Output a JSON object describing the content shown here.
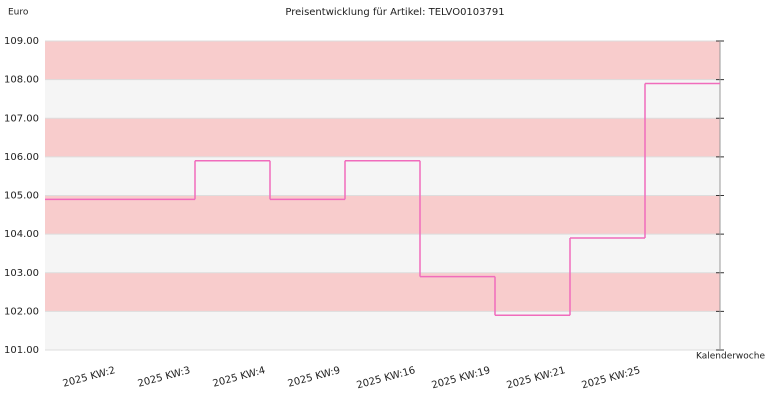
{
  "chart_data": {
    "type": "step",
    "title": "Preisentwicklung für Artikel: TELVO0103791",
    "y_label": "Euro",
    "x_label": "Kalenderwoche",
    "categories": [
      "2025 KW:2",
      "2025 KW:3",
      "2025 KW:4",
      "2025 KW:9",
      "2025 KW:16",
      "2025 KW:19",
      "2025 KW:21",
      "2025 KW:25",
      null
    ],
    "values": [
      104.9,
      104.9,
      105.9,
      104.9,
      105.9,
      102.9,
      101.9,
      103.9,
      107.9
    ],
    "color": "#f06cbc",
    "band_colors": [
      "#f8cccc",
      "#f5f5f5"
    ],
    "ylim": [
      101,
      109
    ],
    "yticks": [
      {
        "value": 101,
        "label": "101.00"
      },
      {
        "value": 102,
        "label": "102.00"
      },
      {
        "value": 103,
        "label": "103.00"
      },
      {
        "value": 104,
        "label": "104.00"
      },
      {
        "value": 105,
        "label": "105.00"
      },
      {
        "value": 106,
        "label": "106.00"
      },
      {
        "value": 107,
        "label": "107.00"
      },
      {
        "value": 108,
        "label": "108.00"
      },
      {
        "value": 109,
        "label": "109.00"
      }
    ]
  }
}
